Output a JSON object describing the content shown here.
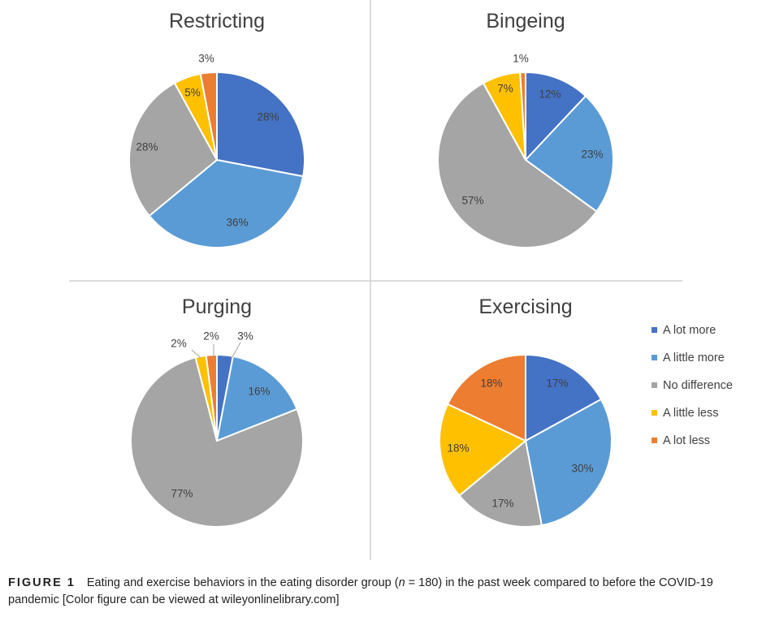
{
  "chart_data": [
    {
      "type": "pie",
      "title": "Restricting",
      "categories": [
        "A lot more",
        "A little more",
        "No difference",
        "A little less",
        "A lot less"
      ],
      "values": [
        28,
        36,
        28,
        5,
        3
      ],
      "labels": [
        "28%",
        "36%",
        "28%",
        "5%",
        "3%"
      ]
    },
    {
      "type": "pie",
      "title": "Bingeing",
      "categories": [
        "A lot more",
        "A little more",
        "No difference",
        "A little less",
        "A lot less"
      ],
      "values": [
        12,
        23,
        57,
        7,
        1
      ],
      "labels": [
        "12%",
        "23%",
        "57%",
        "7%",
        "1%"
      ]
    },
    {
      "type": "pie",
      "title": "Purging",
      "categories": [
        "A lot more",
        "A little more",
        "No difference",
        "A little less",
        "A lot less"
      ],
      "values": [
        3,
        16,
        77,
        2,
        2
      ],
      "labels": [
        "3%",
        "16%",
        "77%",
        "2%",
        "2%"
      ]
    },
    {
      "type": "pie",
      "title": "Exercising",
      "categories": [
        "A lot more",
        "A little more",
        "No difference",
        "A little less",
        "A lot less"
      ],
      "values": [
        17,
        30,
        17,
        18,
        18
      ],
      "labels": [
        "17%",
        "30%",
        "17%",
        "18%",
        "18%"
      ]
    }
  ],
  "legend": {
    "placement": "right of Exercising chart",
    "items": [
      "A lot more",
      "A little more",
      "No difference",
      "A little less",
      "A lot less"
    ]
  },
  "colors": {
    "a_lot_more": "#4472C4",
    "a_little_more": "#5B9BD5",
    "no_difference": "#A5A5A5",
    "a_little_less": "#FFC000",
    "a_lot_less": "#ED7D31"
  },
  "caption": {
    "label": "FIGURE 1",
    "text_before_n": "Eating and exercise behaviors in the eating disorder group (",
    "n_symbol": "n",
    "text_after_n": " = 180) in the past week compared to before the COVID-19 pandemic [Color figure can be viewed at wileyonlinelibrary.com]"
  }
}
